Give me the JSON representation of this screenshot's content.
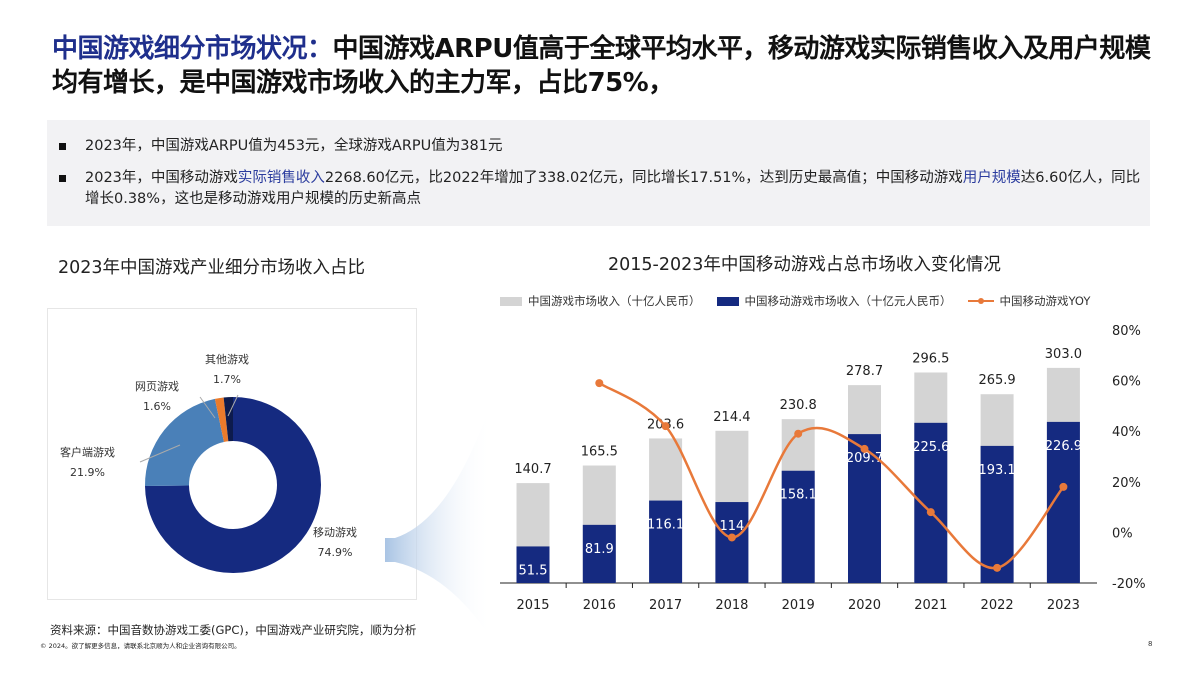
{
  "header": {
    "title_highlight": "中国游戏细分市场状况：",
    "title_rest": "中国游戏ARPU值高于全球平均水平，移动游戏实际销售收入及用户规模均有增长，是中国游戏市场收入的主力军，占比75%，"
  },
  "bullets": [
    {
      "parts": [
        "2023年，中国游戏ARPU值为453元，全球游戏ARPU值为381元"
      ]
    },
    {
      "p1": "2023年，中国移动游戏",
      "h1": "实际销售收入",
      "p2": "2268.60亿元，比2022年增加了338.02亿元，同比增长17.51%，达到历史最高值；中国移动游戏",
      "h2": "用户规模",
      "p3": "达6.60亿人，同比增长0.38%，这也是移动游戏用户规模的历史新高点"
    }
  ],
  "footer": {
    "source": "资料来源：中国音数协游戏工委(GPC)，中国游戏产业研究院，顺为分析",
    "copyright": "© 2024。欲了解更多信息，请联系北京顺为人和企业咨询有限公司。",
    "page": "8"
  },
  "chart_data": [
    {
      "type": "pie",
      "title": "2023年中国游戏产业细分市场收入占比",
      "donut": true,
      "slices": [
        {
          "label": "移动游戏",
          "value": 74.9,
          "display": "74.9%",
          "color": "#152a80"
        },
        {
          "label": "客户端游戏",
          "value": 21.9,
          "display": "21.9%",
          "color": "#4a80b8"
        },
        {
          "label": "网页游戏",
          "value": 1.6,
          "display": "1.6%",
          "color": "#ea7b2c"
        },
        {
          "label": "其他游戏",
          "value": 1.7,
          "display": "1.7%",
          "color": "#0d1b4d"
        }
      ]
    },
    {
      "type": "bar+line",
      "title": "2015-2023年中国移动游戏占总市场收入变化情况",
      "categories": [
        "2015",
        "2016",
        "2017",
        "2018",
        "2019",
        "2020",
        "2021",
        "2022",
        "2023"
      ],
      "series": [
        {
          "name": "中国游戏市场收入（十亿人民币）",
          "type": "bar",
          "color": "#d4d4d4",
          "values": [
            140.7,
            165.5,
            203.6,
            214.4,
            230.8,
            278.7,
            296.5,
            265.9,
            303.0
          ],
          "labels": [
            "140.7",
            "165.5",
            "203.6",
            "214.4",
            "230.8",
            "278.7",
            "296.5",
            "265.9",
            "303.0"
          ]
        },
        {
          "name": "中国移动游戏市场收入（十亿元人民币）",
          "type": "bar",
          "color": "#152a80",
          "values": [
            51.5,
            81.9,
            116.1,
            114,
            158.1,
            209.7,
            225.6,
            193.1,
            226.9
          ],
          "labels": [
            "51.5",
            "81.9",
            "116.1",
            "114",
            "158.1",
            "209.7",
            "225.6",
            "193.1",
            "226.9"
          ]
        },
        {
          "name": "中国移动游戏YOY",
          "type": "line",
          "color": "#e8793a",
          "axis": "right",
          "values": [
            null,
            59,
            42,
            -2,
            39,
            33,
            8,
            -14,
            18
          ]
        }
      ],
      "y2_ticks": [
        "80%",
        "60%",
        "40%",
        "20%",
        "0%",
        "-20%"
      ],
      "y2lim": [
        -20,
        80
      ],
      "legend": "top"
    }
  ]
}
